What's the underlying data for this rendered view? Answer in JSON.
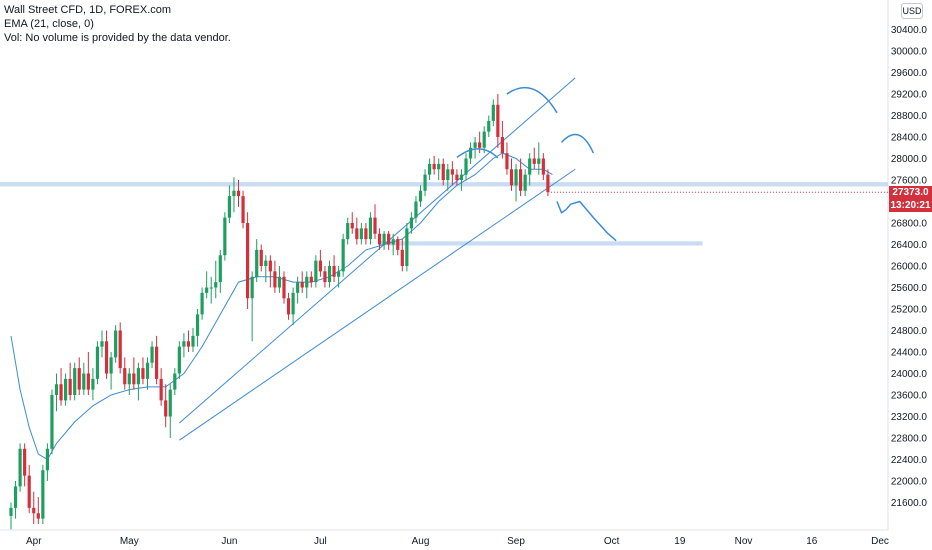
{
  "legend": {
    "title": "Wall Street CFD, 1D, FOREX.com",
    "ema": "EMA (21, close, 0)",
    "vol": "Vol: No volume is provided by the data vendor."
  },
  "currency_button": "USD",
  "last_price": "27373.0",
  "countdown": "13:20:21",
  "colors": {
    "up": "#1e9f5f",
    "down": "#d1303c",
    "drawing": "#3d8bd6",
    "zone": "#c9dcf3",
    "price_tag": "#d1303c"
  },
  "chart_data": {
    "type": "candlestick",
    "symbol": "Wall Street CFD",
    "interval": "1D",
    "ylim": [
      21200,
      30800
    ],
    "y_ticks": [
      21600,
      22000,
      22400,
      22800,
      23200,
      23600,
      24000,
      24400,
      24800,
      25200,
      25600,
      26000,
      26400,
      26800,
      27200,
      27600,
      28000,
      28400,
      28800,
      29200,
      29600,
      30000,
      30400
    ],
    "y_tick_labels": [
      "21600.0",
      "22000.0",
      "22400.0",
      "22800.0",
      "23200.0",
      "23600.0",
      "24000.0",
      "24400.0",
      "24800.0",
      "25200.0",
      "25600.0",
      "26000.0",
      "26400.0",
      "26800.0",
      "27200.0",
      "27600.0",
      "28000.0",
      "28400.0",
      "28800.0",
      "29200.0",
      "29600.0",
      "30000.0",
      "30400.0"
    ],
    "x_ticks": [
      {
        "label": "Apr",
        "bar": 5
      },
      {
        "label": "May",
        "bar": 26
      },
      {
        "label": "Jun",
        "bar": 48
      },
      {
        "label": "Jul",
        "bar": 68
      },
      {
        "label": "Aug",
        "bar": 90
      },
      {
        "label": "Sep",
        "bar": 111
      },
      {
        "label": "Oct",
        "bar": 132
      },
      {
        "label": "19",
        "bar": 147
      },
      {
        "label": "Nov",
        "bar": 161
      },
      {
        "label": "16",
        "bar": 176
      },
      {
        "label": "Dec",
        "bar": 191
      }
    ],
    "candles": [
      {
        "o": 21350,
        "h": 21600,
        "l": 21100,
        "c": 21500
      },
      {
        "o": 21500,
        "h": 22000,
        "l": 21300,
        "c": 21900
      },
      {
        "o": 21900,
        "h": 22700,
        "l": 21800,
        "c": 22600
      },
      {
        "o": 22600,
        "h": 22700,
        "l": 21900,
        "c": 22100
      },
      {
        "o": 22100,
        "h": 22300,
        "l": 21400,
        "c": 21500
      },
      {
        "o": 21500,
        "h": 21800,
        "l": 21200,
        "c": 21400
      },
      {
        "o": 21400,
        "h": 21700,
        "l": 21200,
        "c": 21300
      },
      {
        "o": 21300,
        "h": 22300,
        "l": 21200,
        "c": 22200
      },
      {
        "o": 22200,
        "h": 22700,
        "l": 22000,
        "c": 22600
      },
      {
        "o": 22600,
        "h": 23700,
        "l": 22500,
        "c": 23600
      },
      {
        "o": 23600,
        "h": 24000,
        "l": 23300,
        "c": 23800
      },
      {
        "o": 23800,
        "h": 24100,
        "l": 23400,
        "c": 23500
      },
      {
        "o": 23500,
        "h": 24000,
        "l": 23400,
        "c": 23900
      },
      {
        "o": 23900,
        "h": 24200,
        "l": 23500,
        "c": 23600
      },
      {
        "o": 23600,
        "h": 24200,
        "l": 23500,
        "c": 24100
      },
      {
        "o": 24100,
        "h": 24300,
        "l": 23600,
        "c": 23700
      },
      {
        "o": 23700,
        "h": 24200,
        "l": 23600,
        "c": 24000
      },
      {
        "o": 24000,
        "h": 24400,
        "l": 23600,
        "c": 23700
      },
      {
        "o": 23700,
        "h": 24100,
        "l": 23500,
        "c": 23900
      },
      {
        "o": 23900,
        "h": 24600,
        "l": 23800,
        "c": 24500
      },
      {
        "o": 24500,
        "h": 24800,
        "l": 24300,
        "c": 24600
      },
      {
        "o": 24600,
        "h": 24800,
        "l": 23900,
        "c": 24000
      },
      {
        "o": 24000,
        "h": 24400,
        "l": 23700,
        "c": 24300
      },
      {
        "o": 24300,
        "h": 24900,
        "l": 24200,
        "c": 24800
      },
      {
        "o": 24800,
        "h": 24950,
        "l": 24000,
        "c": 24100
      },
      {
        "o": 24100,
        "h": 24300,
        "l": 23700,
        "c": 23800
      },
      {
        "o": 23800,
        "h": 24100,
        "l": 23600,
        "c": 24000
      },
      {
        "o": 24000,
        "h": 24300,
        "l": 23700,
        "c": 23800
      },
      {
        "o": 23800,
        "h": 24200,
        "l": 23500,
        "c": 24100
      },
      {
        "o": 24100,
        "h": 24300,
        "l": 23800,
        "c": 23900
      },
      {
        "o": 23900,
        "h": 24300,
        "l": 23700,
        "c": 24200
      },
      {
        "o": 24200,
        "h": 24600,
        "l": 24100,
        "c": 24500
      },
      {
        "o": 24500,
        "h": 24700,
        "l": 23800,
        "c": 23900
      },
      {
        "o": 23900,
        "h": 24100,
        "l": 23400,
        "c": 23500
      },
      {
        "o": 23500,
        "h": 23800,
        "l": 23000,
        "c": 23200
      },
      {
        "o": 23200,
        "h": 23800,
        "l": 22800,
        "c": 23700
      },
      {
        "o": 23700,
        "h": 24100,
        "l": 23600,
        "c": 24000
      },
      {
        "o": 24000,
        "h": 24600,
        "l": 23900,
        "c": 24500
      },
      {
        "o": 24500,
        "h": 24750,
        "l": 24300,
        "c": 24600
      },
      {
        "o": 24600,
        "h": 24800,
        "l": 24400,
        "c": 24500
      },
      {
        "o": 24500,
        "h": 24850,
        "l": 24400,
        "c": 24700
      },
      {
        "o": 24700,
        "h": 25200,
        "l": 24500,
        "c": 25100
      },
      {
        "o": 25100,
        "h": 25600,
        "l": 25000,
        "c": 25500
      },
      {
        "o": 25500,
        "h": 25900,
        "l": 25400,
        "c": 25600
      },
      {
        "o": 25600,
        "h": 25800,
        "l": 25300,
        "c": 25600
      },
      {
        "o": 25600,
        "h": 26100,
        "l": 25400,
        "c": 25700
      },
      {
        "o": 25700,
        "h": 26300,
        "l": 25500,
        "c": 26200
      },
      {
        "o": 26200,
        "h": 27000,
        "l": 26100,
        "c": 26900
      },
      {
        "o": 26900,
        "h": 27500,
        "l": 26800,
        "c": 27300
      },
      {
        "o": 27300,
        "h": 27650,
        "l": 27000,
        "c": 27400
      },
      {
        "o": 27400,
        "h": 27600,
        "l": 27100,
        "c": 27300
      },
      {
        "o": 27300,
        "h": 27400,
        "l": 26700,
        "c": 26800
      },
      {
        "o": 26800,
        "h": 27000,
        "l": 25200,
        "c": 25400
      },
      {
        "o": 25400,
        "h": 25900,
        "l": 24600,
        "c": 25800
      },
      {
        "o": 25800,
        "h": 26500,
        "l": 25700,
        "c": 26300
      },
      {
        "o": 26300,
        "h": 26400,
        "l": 25900,
        "c": 26000
      },
      {
        "o": 26000,
        "h": 26200,
        "l": 25700,
        "c": 26100
      },
      {
        "o": 26100,
        "h": 26200,
        "l": 25600,
        "c": 25900
      },
      {
        "o": 25900,
        "h": 26100,
        "l": 25500,
        "c": 25600
      },
      {
        "o": 25600,
        "h": 26000,
        "l": 25500,
        "c": 25800
      },
      {
        "o": 25800,
        "h": 25900,
        "l": 25300,
        "c": 25400
      },
      {
        "o": 25400,
        "h": 25500,
        "l": 25000,
        "c": 25100
      },
      {
        "o": 25100,
        "h": 25600,
        "l": 24900,
        "c": 25500
      },
      {
        "o": 25500,
        "h": 25800,
        "l": 25300,
        "c": 25700
      },
      {
        "o": 25700,
        "h": 25900,
        "l": 25500,
        "c": 25600
      },
      {
        "o": 25600,
        "h": 25900,
        "l": 25400,
        "c": 25800
      },
      {
        "o": 25800,
        "h": 25900,
        "l": 25600,
        "c": 25700
      },
      {
        "o": 25700,
        "h": 26200,
        "l": 25600,
        "c": 26100
      },
      {
        "o": 26100,
        "h": 26300,
        "l": 25800,
        "c": 25900
      },
      {
        "o": 25900,
        "h": 26000,
        "l": 25600,
        "c": 25700
      },
      {
        "o": 25700,
        "h": 26100,
        "l": 25600,
        "c": 26000
      },
      {
        "o": 26000,
        "h": 26200,
        "l": 25700,
        "c": 25800
      },
      {
        "o": 25800,
        "h": 26000,
        "l": 25600,
        "c": 25900
      },
      {
        "o": 25900,
        "h": 26600,
        "l": 25800,
        "c": 26500
      },
      {
        "o": 26500,
        "h": 26900,
        "l": 26400,
        "c": 26800
      },
      {
        "o": 26800,
        "h": 27000,
        "l": 26600,
        "c": 26700
      },
      {
        "o": 26700,
        "h": 26900,
        "l": 26400,
        "c": 26500
      },
      {
        "o": 26500,
        "h": 26800,
        "l": 26400,
        "c": 26700
      },
      {
        "o": 26700,
        "h": 26800,
        "l": 26400,
        "c": 26500
      },
      {
        "o": 26500,
        "h": 27000,
        "l": 26400,
        "c": 26900
      },
      {
        "o": 26900,
        "h": 27150,
        "l": 26500,
        "c": 26600
      },
      {
        "o": 26600,
        "h": 26700,
        "l": 26300,
        "c": 26400
      },
      {
        "o": 26400,
        "h": 26650,
        "l": 26300,
        "c": 26600
      },
      {
        "o": 26600,
        "h": 26650,
        "l": 26300,
        "c": 26400
      },
      {
        "o": 26400,
        "h": 26600,
        "l": 26200,
        "c": 26500
      },
      {
        "o": 26500,
        "h": 26550,
        "l": 26200,
        "c": 26300
      },
      {
        "o": 26300,
        "h": 26500,
        "l": 25900,
        "c": 26000
      },
      {
        "o": 26000,
        "h": 26800,
        "l": 25900,
        "c": 26700
      },
      {
        "o": 26700,
        "h": 27000,
        "l": 26600,
        "c": 26900
      },
      {
        "o": 26900,
        "h": 27300,
        "l": 26800,
        "c": 27200
      },
      {
        "o": 27200,
        "h": 27500,
        "l": 27100,
        "c": 27400
      },
      {
        "o": 27400,
        "h": 27800,
        "l": 27300,
        "c": 27700
      },
      {
        "o": 27700,
        "h": 28000,
        "l": 27600,
        "c": 27900
      },
      {
        "o": 27900,
        "h": 28050,
        "l": 27700,
        "c": 27800
      },
      {
        "o": 27800,
        "h": 28000,
        "l": 27600,
        "c": 27900
      },
      {
        "o": 27900,
        "h": 28000,
        "l": 27500,
        "c": 27600
      },
      {
        "o": 27600,
        "h": 27900,
        "l": 27400,
        "c": 27800
      },
      {
        "o": 27800,
        "h": 27950,
        "l": 27500,
        "c": 27700
      },
      {
        "o": 27700,
        "h": 27800,
        "l": 27500,
        "c": 27600
      },
      {
        "o": 27600,
        "h": 27800,
        "l": 27400,
        "c": 27700
      },
      {
        "o": 27700,
        "h": 28100,
        "l": 27600,
        "c": 28000
      },
      {
        "o": 28000,
        "h": 28300,
        "l": 27900,
        "c": 28200
      },
      {
        "o": 28200,
        "h": 28400,
        "l": 28000,
        "c": 28300
      },
      {
        "o": 28300,
        "h": 28500,
        "l": 28100,
        "c": 28200
      },
      {
        "o": 28200,
        "h": 28600,
        "l": 28100,
        "c": 28500
      },
      {
        "o": 28500,
        "h": 28800,
        "l": 28400,
        "c": 28700
      },
      {
        "o": 28700,
        "h": 29100,
        "l": 28600,
        "c": 29000
      },
      {
        "o": 29000,
        "h": 29200,
        "l": 28200,
        "c": 28400
      },
      {
        "o": 28400,
        "h": 28700,
        "l": 28000,
        "c": 28100
      },
      {
        "o": 28100,
        "h": 28300,
        "l": 27700,
        "c": 27800
      },
      {
        "o": 27800,
        "h": 28000,
        "l": 27400,
        "c": 27500
      },
      {
        "o": 27500,
        "h": 27900,
        "l": 27200,
        "c": 27800
      },
      {
        "o": 27800,
        "h": 28000,
        "l": 27300,
        "c": 27400
      },
      {
        "o": 27400,
        "h": 27800,
        "l": 27300,
        "c": 27700
      },
      {
        "o": 27700,
        "h": 28100,
        "l": 27500,
        "c": 28000
      },
      {
        "o": 28000,
        "h": 28200,
        "l": 27800,
        "c": 27900
      },
      {
        "o": 27900,
        "h": 28300,
        "l": 27700,
        "c": 28000
      },
      {
        "o": 28000,
        "h": 28100,
        "l": 27600,
        "c": 27700
      },
      {
        "o": 27700,
        "h": 27800,
        "l": 27300,
        "c": 27373
      }
    ],
    "ema21": [
      {
        "bar": 0,
        "v": 24700
      },
      {
        "bar": 2,
        "v": 23700
      },
      {
        "bar": 4,
        "v": 23000
      },
      {
        "bar": 6,
        "v": 22500
      },
      {
        "bar": 8,
        "v": 22400
      },
      {
        "bar": 10,
        "v": 22700
      },
      {
        "bar": 14,
        "v": 23100
      },
      {
        "bar": 18,
        "v": 23400
      },
      {
        "bar": 22,
        "v": 23600
      },
      {
        "bar": 26,
        "v": 23700
      },
      {
        "bar": 30,
        "v": 23750
      },
      {
        "bar": 34,
        "v": 23750
      },
      {
        "bar": 38,
        "v": 24000
      },
      {
        "bar": 42,
        "v": 24500
      },
      {
        "bar": 46,
        "v": 25100
      },
      {
        "bar": 50,
        "v": 25700
      },
      {
        "bar": 54,
        "v": 25800
      },
      {
        "bar": 58,
        "v": 25800
      },
      {
        "bar": 62,
        "v": 25700
      },
      {
        "bar": 66,
        "v": 25700
      },
      {
        "bar": 70,
        "v": 25800
      },
      {
        "bar": 74,
        "v": 26000
      },
      {
        "bar": 78,
        "v": 26300
      },
      {
        "bar": 82,
        "v": 26400
      },
      {
        "bar": 86,
        "v": 26500
      },
      {
        "bar": 90,
        "v": 26800
      },
      {
        "bar": 94,
        "v": 27200
      },
      {
        "bar": 98,
        "v": 27500
      },
      {
        "bar": 102,
        "v": 27700
      },
      {
        "bar": 106,
        "v": 28000
      },
      {
        "bar": 108,
        "v": 28100
      },
      {
        "bar": 111,
        "v": 28000
      },
      {
        "bar": 114,
        "v": 27800
      },
      {
        "bar": 117,
        "v": 27800
      },
      {
        "bar": 119,
        "v": 27700
      }
    ],
    "horizontal_zones": [
      {
        "y1": 27480,
        "y2": 27560,
        "from_bar": 0,
        "to_bar": "end"
      },
      {
        "y1": 26380,
        "y2": 26460,
        "from_bar": 81,
        "to_bar": 152
      }
    ],
    "trendlines": [
      {
        "from": {
          "bar": 37,
          "price": 23080
        },
        "to": {
          "bar": 124,
          "price": 29500
        }
      },
      {
        "from": {
          "bar": 37,
          "price": 22760
        },
        "to": {
          "bar": 124,
          "price": 27800
        }
      }
    ],
    "projection": [
      {
        "bar": 120,
        "price": 27200
      },
      {
        "bar": 121,
        "price": 26990
      },
      {
        "bar": 122,
        "price": 27050
      },
      {
        "bar": 123,
        "price": 27150
      },
      {
        "bar": 125,
        "price": 27200
      },
      {
        "bar": 128,
        "price": 26900
      },
      {
        "bar": 131,
        "price": 26620
      },
      {
        "bar": 133,
        "price": 26470
      }
    ],
    "arcs": [
      {
        "points": [
          {
            "bar": 98,
            "price": 28020
          },
          {
            "bar": 103,
            "price": 28120
          },
          {
            "bar": 107,
            "price": 28010
          }
        ]
      },
      {
        "points": [
          {
            "bar": 109,
            "price": 29200
          },
          {
            "bar": 115,
            "price": 29330
          },
          {
            "bar": 120,
            "price": 28850
          }
        ]
      },
      {
        "points": [
          {
            "bar": 121,
            "price": 28300
          },
          {
            "bar": 125,
            "price": 28450
          },
          {
            "bar": 128,
            "price": 28100
          }
        ]
      }
    ],
    "grid": false
  }
}
